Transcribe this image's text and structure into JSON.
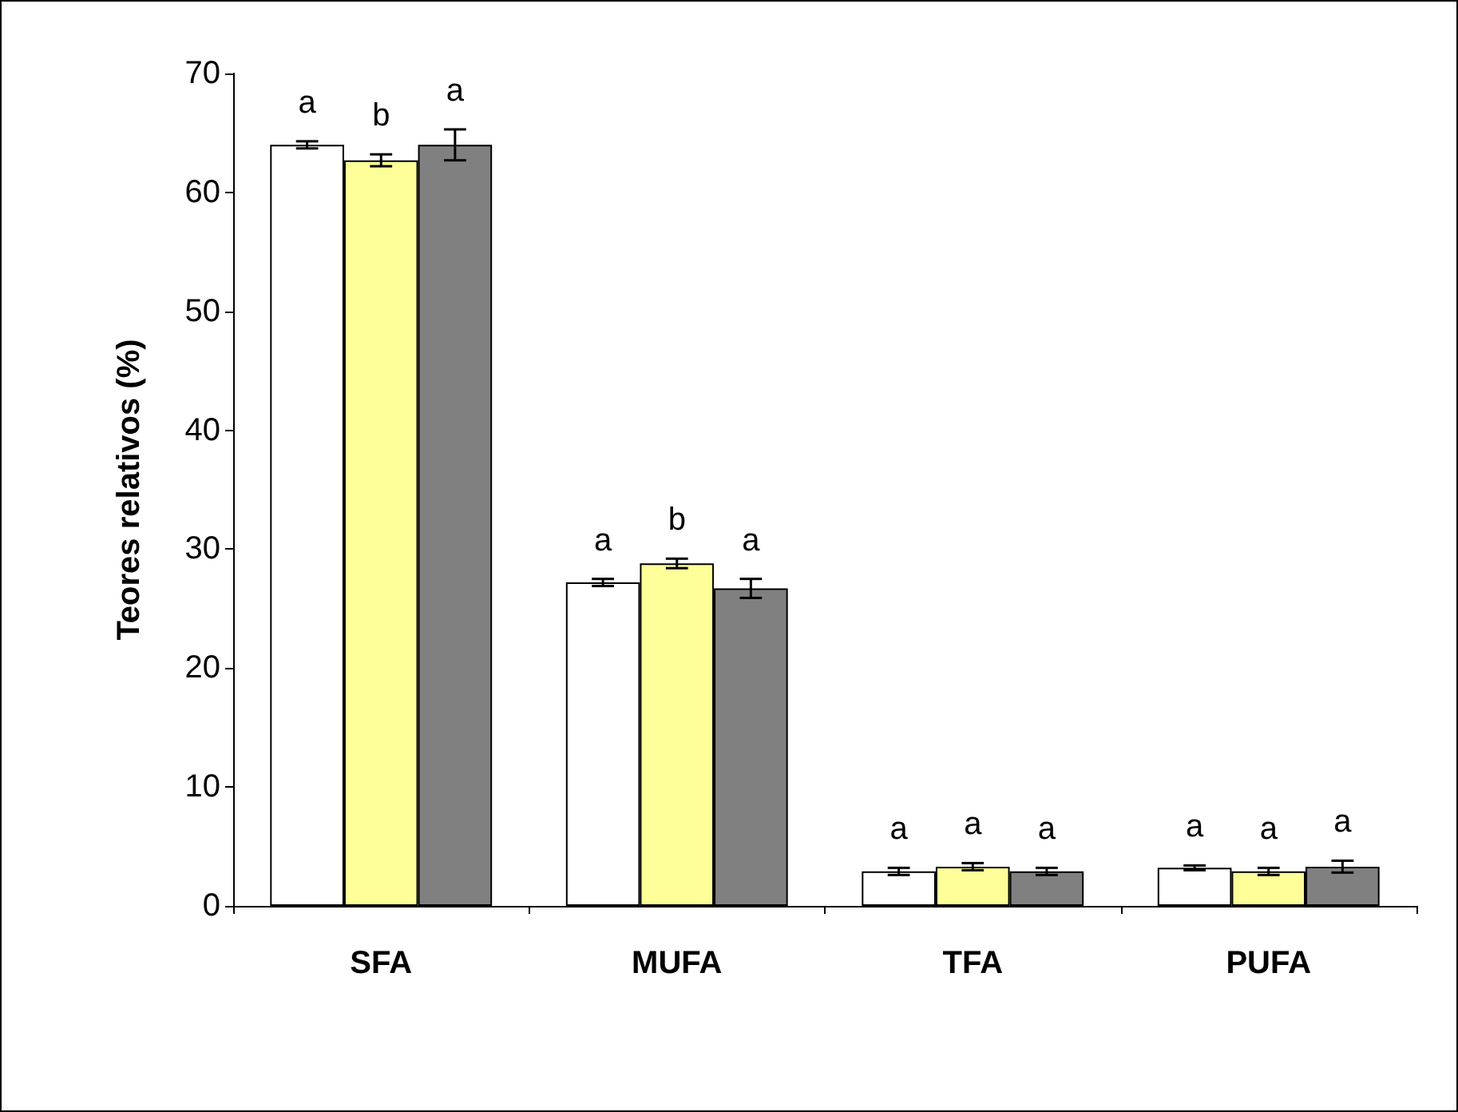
{
  "chart_data": {
    "type": "bar",
    "ylabel": "Teores relativos (%)",
    "categories": [
      "SFA",
      "MUFA",
      "TFA",
      "PUFA"
    ],
    "series": [
      {
        "color": "#ffffff",
        "values": [
          64.0,
          27.2,
          2.9,
          3.2
        ],
        "errors": [
          0.3,
          0.3,
          0.3,
          0.2
        ],
        "value_labels": [
          "a",
          "a",
          "a",
          "a"
        ]
      },
      {
        "color": "#ffff99",
        "values": [
          62.7,
          28.8,
          3.3,
          2.9
        ],
        "errors": [
          0.5,
          0.4,
          0.3,
          0.3
        ],
        "value_labels": [
          "b",
          "b",
          "a",
          "a"
        ]
      },
      {
        "color": "#808080",
        "values": [
          64.0,
          26.7,
          2.9,
          3.3
        ],
        "errors": [
          1.3,
          0.8,
          0.3,
          0.5
        ],
        "value_labels": [
          "a",
          "a",
          "a",
          "a"
        ]
      }
    ],
    "ylim": [
      0,
      70
    ],
    "yticks": [
      0,
      10,
      20,
      30,
      40,
      50,
      60,
      70
    ],
    "grid": false
  }
}
